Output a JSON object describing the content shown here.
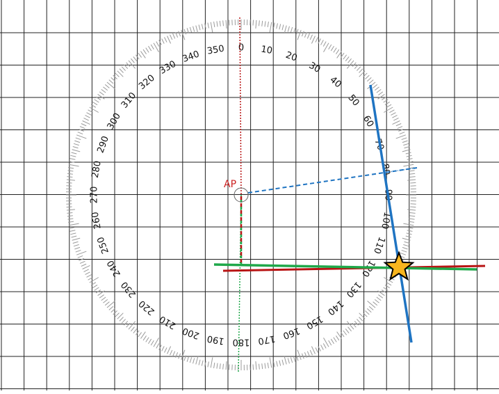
{
  "colors": {
    "grid": "#222222",
    "ring": "#9a9a9a",
    "label": "#111111",
    "ap": "#cc2222",
    "blue": "#1f74c2",
    "red": "#b81414",
    "green": "#1fa84a",
    "star_fill": "#f7b51e",
    "star_stroke": "#000000"
  },
  "protractor": {
    "degree_labels": [
      "0",
      "10",
      "20",
      "30",
      "40",
      "50",
      "60",
      "70",
      "80",
      "90",
      "100",
      "110",
      "120",
      "130",
      "140",
      "150",
      "160",
      "170",
      "180",
      "190",
      "200",
      "210",
      "220",
      "230",
      "240",
      "250",
      "260",
      "270",
      "280",
      "290",
      "300",
      "310",
      "320",
      "330",
      "340",
      "350"
    ]
  },
  "reference_point": {
    "label": "AP"
  },
  "icons": {
    "target_marker": "star-icon"
  }
}
